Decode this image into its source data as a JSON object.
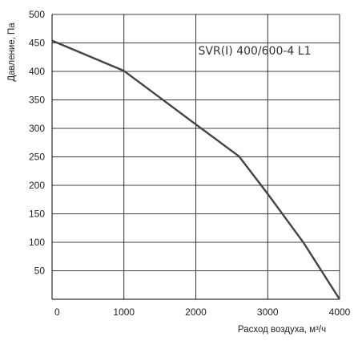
{
  "chart_data": {
    "type": "line",
    "title": "",
    "series": [
      {
        "name": "SVR(I) 400/600-4 L1",
        "x": [
          0,
          1000,
          2000,
          2600,
          3000,
          3500,
          4000
        ],
        "y": [
          454,
          401,
          307,
          251,
          185,
          99,
          0
        ]
      }
    ],
    "xlabel": "Расход воздуха, м³/ч",
    "ylabel": "Давление, Па",
    "xlim": [
      0,
      4000
    ],
    "ylim": [
      0,
      500
    ],
    "x_ticks": [
      0,
      1000,
      2000,
      3000,
      4000
    ],
    "y_ticks": [
      50,
      100,
      150,
      200,
      250,
      300,
      350,
      400,
      450,
      500
    ],
    "x_tick_labels": [
      "0",
      "1000",
      "2000",
      "3000",
      "4000"
    ],
    "y_tick_labels": [
      "50",
      "100",
      "150",
      "200",
      "250",
      "300",
      "350",
      "400",
      "450",
      "500"
    ],
    "grid": true,
    "legend": "top-right",
    "line_color": "#444444",
    "grid_color": "#000000"
  }
}
